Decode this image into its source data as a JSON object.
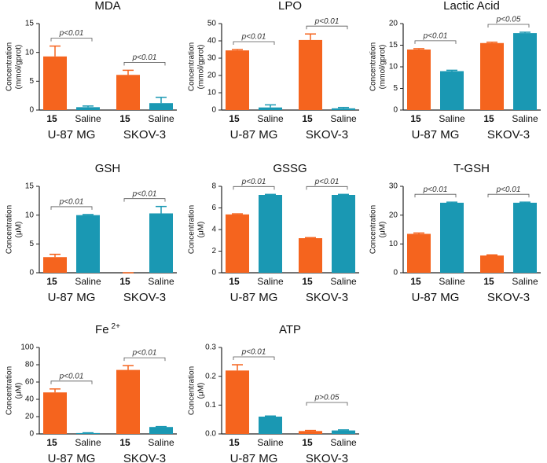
{
  "chart_data": [
    {
      "type": "bar",
      "title": "MDA",
      "ylabel": [
        "Concentration",
        "(mmol/gprot)"
      ],
      "categories": [
        "15",
        "Saline",
        "15",
        "Saline"
      ],
      "groups": [
        "U-87 MG",
        "SKOV-3"
      ],
      "values": [
        9.3,
        0.5,
        6.1,
        1.2
      ],
      "errors": [
        1.8,
        0.2,
        0.8,
        1.0
      ],
      "colors": [
        "#f5641e",
        "#1a98b3",
        "#f5641e",
        "#1a98b3"
      ],
      "ylim": [
        0,
        15
      ],
      "yticks": [
        0,
        5,
        10,
        15
      ],
      "annotations": [
        "p<0.01",
        "p<0.01"
      ]
    },
    {
      "type": "bar",
      "title": "LPO",
      "ylabel": [
        "Concentration",
        "(mmol/gprot)"
      ],
      "categories": [
        "15",
        "Saline",
        "15",
        "Saline"
      ],
      "groups": [
        "U-87 MG",
        "SKOV-3"
      ],
      "values": [
        34.5,
        1.5,
        40.5,
        1.0
      ],
      "errors": [
        0.5,
        1.5,
        3.5,
        0.5
      ],
      "colors": [
        "#f5641e",
        "#1a98b3",
        "#f5641e",
        "#1a98b3"
      ],
      "ylim": [
        0,
        50
      ],
      "yticks": [
        0,
        10,
        20,
        30,
        40,
        50
      ],
      "annotations": [
        "p<0.01",
        "p<0.01"
      ]
    },
    {
      "type": "bar",
      "title": "Lactic Acid",
      "ylabel": [
        "Concentration",
        "(mmol/gprot)"
      ],
      "categories": [
        "15",
        "Saline",
        "15",
        "Saline"
      ],
      "groups": [
        "U-87 MG",
        "SKOV-3"
      ],
      "values": [
        14.0,
        9.0,
        15.5,
        17.8
      ],
      "errors": [
        0.2,
        0.2,
        0.2,
        0.2
      ],
      "colors": [
        "#f5641e",
        "#1a98b3",
        "#f5641e",
        "#1a98b3"
      ],
      "ylim": [
        0,
        20
      ],
      "yticks": [
        0,
        5,
        10,
        15,
        20
      ],
      "annotations": [
        "p<0.01",
        "p<0.05"
      ]
    },
    {
      "type": "bar",
      "title": "GSH",
      "ylabel": [
        "Concentration",
        "(μM)"
      ],
      "categories": [
        "15",
        "Saline",
        "15",
        "Saline"
      ],
      "groups": [
        "U-87 MG",
        "SKOV-3"
      ],
      "values": [
        2.7,
        10.0,
        0,
        10.3
      ],
      "errors": [
        0.5,
        0.1,
        0,
        1.2
      ],
      "colors": [
        "#f5641e",
        "#1a98b3",
        "#f5641e",
        "#1a98b3"
      ],
      "ylim": [
        0,
        15
      ],
      "yticks": [
        0,
        5,
        10,
        15
      ],
      "annotations": [
        "p<0.01",
        "p<0.01"
      ]
    },
    {
      "type": "bar",
      "title": "GSSG",
      "ylabel": [
        "Concentration",
        "(μM)"
      ],
      "categories": [
        "15",
        "Saline",
        "15",
        "Saline"
      ],
      "groups": [
        "U-87 MG",
        "SKOV-3"
      ],
      "values": [
        5.4,
        7.2,
        3.2,
        7.2
      ],
      "errors": [
        0.05,
        0.05,
        0.05,
        0.05
      ],
      "colors": [
        "#f5641e",
        "#1a98b3",
        "#f5641e",
        "#1a98b3"
      ],
      "ylim": [
        0,
        8
      ],
      "yticks": [
        0,
        2,
        4,
        6,
        8
      ],
      "annotations": [
        "p<0.01",
        "p<0.01"
      ]
    },
    {
      "type": "bar",
      "title": "T-GSH",
      "ylabel": [
        "Concentration",
        "(μM)"
      ],
      "categories": [
        "15",
        "Saline",
        "15",
        "Saline"
      ],
      "groups": [
        "U-87 MG",
        "SKOV-3"
      ],
      "values": [
        13.5,
        24.3,
        6.0,
        24.3
      ],
      "errors": [
        0.3,
        0.2,
        0.2,
        0.2
      ],
      "colors": [
        "#f5641e",
        "#1a98b3",
        "#f5641e",
        "#1a98b3"
      ],
      "ylim": [
        0,
        30
      ],
      "yticks": [
        0,
        10,
        20,
        30
      ],
      "annotations": [
        "p<0.01",
        "p<0.01"
      ]
    },
    {
      "type": "bar",
      "title": "Fe",
      "title_sup": "2+",
      "ylabel": [
        "Concentration",
        "(μM)"
      ],
      "categories": [
        "15",
        "Saline",
        "15",
        "Saline"
      ],
      "groups": [
        "U-87 MG",
        "SKOV-3"
      ],
      "values": [
        48,
        1,
        74,
        8
      ],
      "errors": [
        4,
        0.3,
        5,
        0.5
      ],
      "colors": [
        "#f5641e",
        "#1a98b3",
        "#f5641e",
        "#1a98b3"
      ],
      "ylim": [
        0,
        100
      ],
      "yticks": [
        0,
        20,
        40,
        60,
        80,
        100
      ],
      "annotations": [
        "p<0.01",
        "p<0.01"
      ]
    },
    {
      "type": "bar",
      "title": "ATP",
      "ylabel": [
        "Concentration",
        "(μM)"
      ],
      "categories": [
        "15",
        "Saline",
        "15",
        "Saline"
      ],
      "groups": [
        "U-87 MG",
        "SKOV-3"
      ],
      "values": [
        0.22,
        0.06,
        0.01,
        0.012
      ],
      "errors": [
        0.02,
        0.002,
        0.002,
        0.002
      ],
      "colors": [
        "#f5641e",
        "#1a98b3",
        "#f5641e",
        "#1a98b3"
      ],
      "ylim": [
        0,
        0.3
      ],
      "yticks": [
        {
          "value": 0,
          "label": "0.0"
        },
        0.1,
        0.2,
        0.3
      ],
      "annotations": [
        "p<0.01",
        "p>0.05"
      ]
    }
  ]
}
